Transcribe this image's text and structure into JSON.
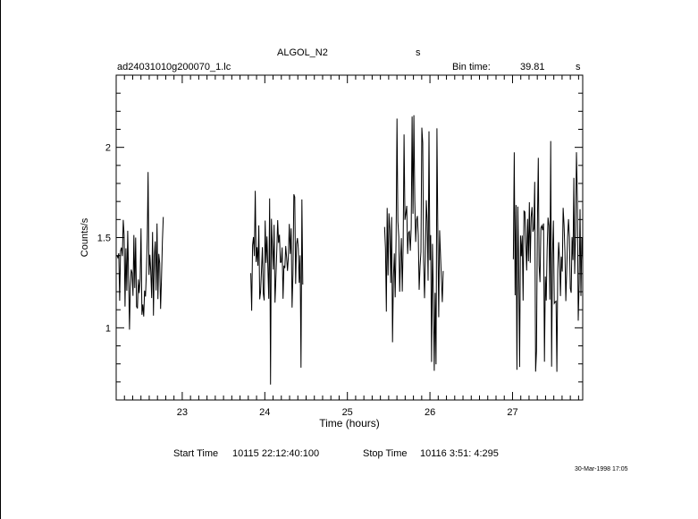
{
  "header": {
    "object_name": "ALGOL_N2",
    "units_mark": "s",
    "file_name": "ad24031010g200070_1.lc",
    "bin_time_label": "Bin time:",
    "bin_time_value": "39.81",
    "bin_time_unit": "s"
  },
  "footer": {
    "start_label": "Start Time",
    "start_value": "10115 22:12:40:100",
    "stop_label": "Stop Time",
    "stop_value": "10116  3:51: 4:295",
    "timestamp": "30-Mar-1998 17:05"
  },
  "chart_data": {
    "type": "line",
    "xlabel": "Time (hours)",
    "ylabel": "Counts/s",
    "xlim": [
      22.2,
      27.85
    ],
    "ylim": [
      0.6,
      2.4
    ],
    "x_ticks": [
      "23",
      "24",
      "25",
      "26",
      "27"
    ],
    "y_ticks": [
      "1",
      "1.5",
      "2"
    ],
    "grid": false,
    "series": [
      {
        "segments": [
          {
            "x_start": 22.21,
            "x_end": 22.77,
            "min": 0.78,
            "max": 1.93,
            "typical_low": 1.12,
            "typical_high": 1.52
          },
          {
            "x_start": 23.83,
            "x_end": 24.46,
            "min": 0.67,
            "max": 1.79,
            "typical_low": 1.15,
            "typical_high": 1.55
          },
          {
            "x_start": 25.45,
            "x_end": 26.16,
            "min": 0.74,
            "max": 2.19,
            "typical_low": 1.2,
            "typical_high": 1.65
          },
          {
            "x_start": 27.01,
            "x_end": 27.85,
            "min": 0.74,
            "max": 2.08,
            "typical_low": 1.2,
            "typical_high": 1.65
          }
        ]
      }
    ]
  }
}
